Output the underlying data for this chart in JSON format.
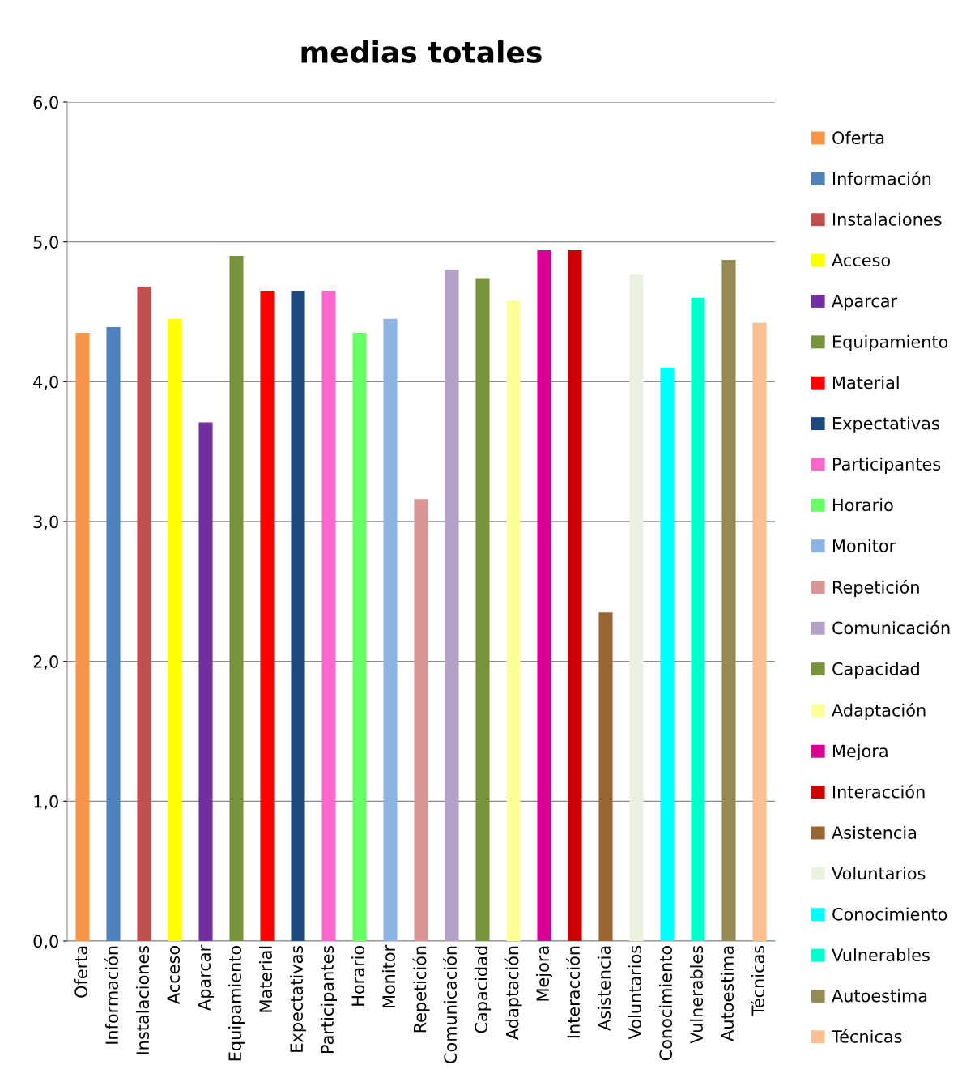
{
  "chart_data": {
    "type": "bar",
    "title": "medias totales",
    "stacked": true,
    "categories": [
      "Oferta",
      "Información",
      "Instalaciones",
      "Acceso",
      "Aparcar",
      "Equipamiento",
      "Material",
      "Expectativas",
      "Participantes",
      "Horario",
      "Monitor",
      "Repetición",
      "Comunicación",
      "Capacidad",
      "Adaptación",
      "Mejora",
      "Interacción",
      "Asistencia",
      "Voluntarios",
      "Conocimiento",
      "Vulnerables",
      "Autoestima",
      "Técnicas"
    ],
    "series": [
      {
        "name": "Oferta",
        "color": "#f79646",
        "values": [
          4.35,
          null,
          null,
          null,
          null,
          null,
          null,
          null,
          null,
          null,
          null,
          null,
          null,
          null,
          null,
          null,
          null,
          null,
          null,
          null,
          null,
          null,
          null
        ]
      },
      {
        "name": "Información",
        "color": "#4f81bd",
        "values": [
          null,
          4.39,
          null,
          null,
          null,
          null,
          null,
          null,
          null,
          null,
          null,
          null,
          null,
          null,
          null,
          null,
          null,
          null,
          null,
          null,
          null,
          null,
          null
        ]
      },
      {
        "name": "Instalaciones",
        "color": "#c0504d",
        "values": [
          null,
          null,
          4.68,
          null,
          null,
          null,
          null,
          null,
          null,
          null,
          null,
          null,
          null,
          null,
          null,
          null,
          null,
          null,
          null,
          null,
          null,
          null,
          null
        ]
      },
      {
        "name": "Acceso",
        "color": "#ffff00",
        "values": [
          null,
          null,
          null,
          4.45,
          null,
          null,
          null,
          null,
          null,
          null,
          null,
          null,
          null,
          null,
          null,
          null,
          null,
          null,
          null,
          null,
          null,
          null,
          null
        ]
      },
      {
        "name": "Aparcar",
        "color": "#7030a0",
        "values": [
          null,
          null,
          null,
          null,
          3.71,
          null,
          null,
          null,
          null,
          null,
          null,
          null,
          null,
          null,
          null,
          null,
          null,
          null,
          null,
          null,
          null,
          null,
          null
        ]
      },
      {
        "name": "Equipamiento",
        "color": "#77933c",
        "values": [
          null,
          null,
          null,
          null,
          null,
          4.9,
          null,
          null,
          null,
          null,
          null,
          null,
          null,
          null,
          null,
          null,
          null,
          null,
          null,
          null,
          null,
          null,
          null
        ]
      },
      {
        "name": "Material",
        "color": "#ff0000",
        "values": [
          null,
          null,
          null,
          null,
          null,
          null,
          4.65,
          null,
          null,
          null,
          null,
          null,
          null,
          null,
          null,
          null,
          null,
          null,
          null,
          null,
          null,
          null,
          null
        ]
      },
      {
        "name": "Expectativas",
        "color": "#1f497d",
        "values": [
          null,
          null,
          null,
          null,
          null,
          null,
          null,
          4.65,
          null,
          null,
          null,
          null,
          null,
          null,
          null,
          null,
          null,
          null,
          null,
          null,
          null,
          null,
          null
        ]
      },
      {
        "name": "Participantes",
        "color": "#ff66cc",
        "values": [
          null,
          null,
          null,
          null,
          null,
          null,
          null,
          null,
          4.65,
          null,
          null,
          null,
          null,
          null,
          null,
          null,
          null,
          null,
          null,
          null,
          null,
          null,
          null
        ]
      },
      {
        "name": "Horario",
        "color": "#66ff66",
        "values": [
          null,
          null,
          null,
          null,
          null,
          null,
          null,
          null,
          null,
          4.35,
          null,
          null,
          null,
          null,
          null,
          null,
          null,
          null,
          null,
          null,
          null,
          null,
          null
        ]
      },
      {
        "name": "Monitor",
        "color": "#8db3e2",
        "values": [
          null,
          null,
          null,
          null,
          null,
          null,
          null,
          null,
          null,
          null,
          4.45,
          null,
          null,
          null,
          null,
          null,
          null,
          null,
          null,
          null,
          null,
          null,
          null
        ]
      },
      {
        "name": "Repetición",
        "color": "#d99694",
        "values": [
          null,
          null,
          null,
          null,
          null,
          null,
          null,
          null,
          null,
          null,
          null,
          3.16,
          null,
          null,
          null,
          null,
          null,
          null,
          null,
          null,
          null,
          null,
          null
        ]
      },
      {
        "name": "Comunicación",
        "color": "#b3a2c7",
        "values": [
          null,
          null,
          null,
          null,
          null,
          null,
          null,
          null,
          null,
          null,
          null,
          null,
          4.8,
          null,
          null,
          null,
          null,
          null,
          null,
          null,
          null,
          null,
          null
        ]
      },
      {
        "name": "Capacidad",
        "color": "#77933c",
        "values": [
          null,
          null,
          null,
          null,
          null,
          null,
          null,
          null,
          null,
          null,
          null,
          null,
          null,
          4.74,
          null,
          null,
          null,
          null,
          null,
          null,
          null,
          null,
          null
        ]
      },
      {
        "name": "Adaptación",
        "color": "#ffff99",
        "values": [
          null,
          null,
          null,
          null,
          null,
          null,
          null,
          null,
          null,
          null,
          null,
          null,
          null,
          null,
          4.58,
          null,
          null,
          null,
          null,
          null,
          null,
          null,
          null
        ]
      },
      {
        "name": "Mejora",
        "color": "#d60093",
        "values": [
          null,
          null,
          null,
          null,
          null,
          null,
          null,
          null,
          null,
          null,
          null,
          null,
          null,
          null,
          null,
          4.94,
          null,
          null,
          null,
          null,
          null,
          null,
          null
        ]
      },
      {
        "name": "Interacción",
        "color": "#cc0000",
        "values": [
          null,
          null,
          null,
          null,
          null,
          null,
          null,
          null,
          null,
          null,
          null,
          null,
          null,
          null,
          null,
          null,
          4.94,
          null,
          null,
          null,
          null,
          null,
          null
        ]
      },
      {
        "name": "Asistencia",
        "color": "#996633",
        "values": [
          null,
          null,
          null,
          null,
          null,
          null,
          null,
          null,
          null,
          null,
          null,
          null,
          null,
          null,
          null,
          null,
          null,
          2.35,
          null,
          null,
          null,
          null,
          null
        ]
      },
      {
        "name": "Voluntarios",
        "color": "#ebf1de",
        "values": [
          null,
          null,
          null,
          null,
          null,
          null,
          null,
          null,
          null,
          null,
          null,
          null,
          null,
          null,
          null,
          null,
          null,
          null,
          4.77,
          null,
          null,
          null,
          null
        ]
      },
      {
        "name": "Conocimiento",
        "color": "#00ffff",
        "values": [
          null,
          null,
          null,
          null,
          null,
          null,
          null,
          null,
          null,
          null,
          null,
          null,
          null,
          null,
          null,
          null,
          null,
          null,
          null,
          4.1,
          null,
          null,
          null
        ]
      },
      {
        "name": "Vulnerables",
        "color": "#00ffcc",
        "values": [
          null,
          null,
          null,
          null,
          null,
          null,
          null,
          null,
          null,
          null,
          null,
          null,
          null,
          null,
          null,
          null,
          null,
          null,
          null,
          null,
          4.6,
          null,
          null
        ]
      },
      {
        "name": "Autoestima",
        "color": "#948a54",
        "values": [
          null,
          null,
          null,
          null,
          null,
          null,
          null,
          null,
          null,
          null,
          null,
          null,
          null,
          null,
          null,
          null,
          null,
          null,
          null,
          null,
          null,
          4.87,
          null
        ]
      },
      {
        "name": "Técnicas",
        "color": "#fac090",
        "values": [
          null,
          null,
          null,
          null,
          null,
          null,
          null,
          null,
          null,
          null,
          null,
          null,
          null,
          null,
          null,
          null,
          null,
          null,
          null,
          null,
          null,
          null,
          4.42
        ]
      }
    ],
    "ylim": [
      0,
      6
    ],
    "yticks": [
      {
        "value": 0,
        "label": "0,0"
      },
      {
        "value": 1,
        "label": "1,0"
      },
      {
        "value": 2,
        "label": "2,0"
      },
      {
        "value": 3,
        "label": "3,0"
      },
      {
        "value": 4,
        "label": "4,0"
      },
      {
        "value": 5,
        "label": "5,0"
      },
      {
        "value": 6,
        "label": "6,0"
      }
    ],
    "grid": "y",
    "legend": "right"
  }
}
